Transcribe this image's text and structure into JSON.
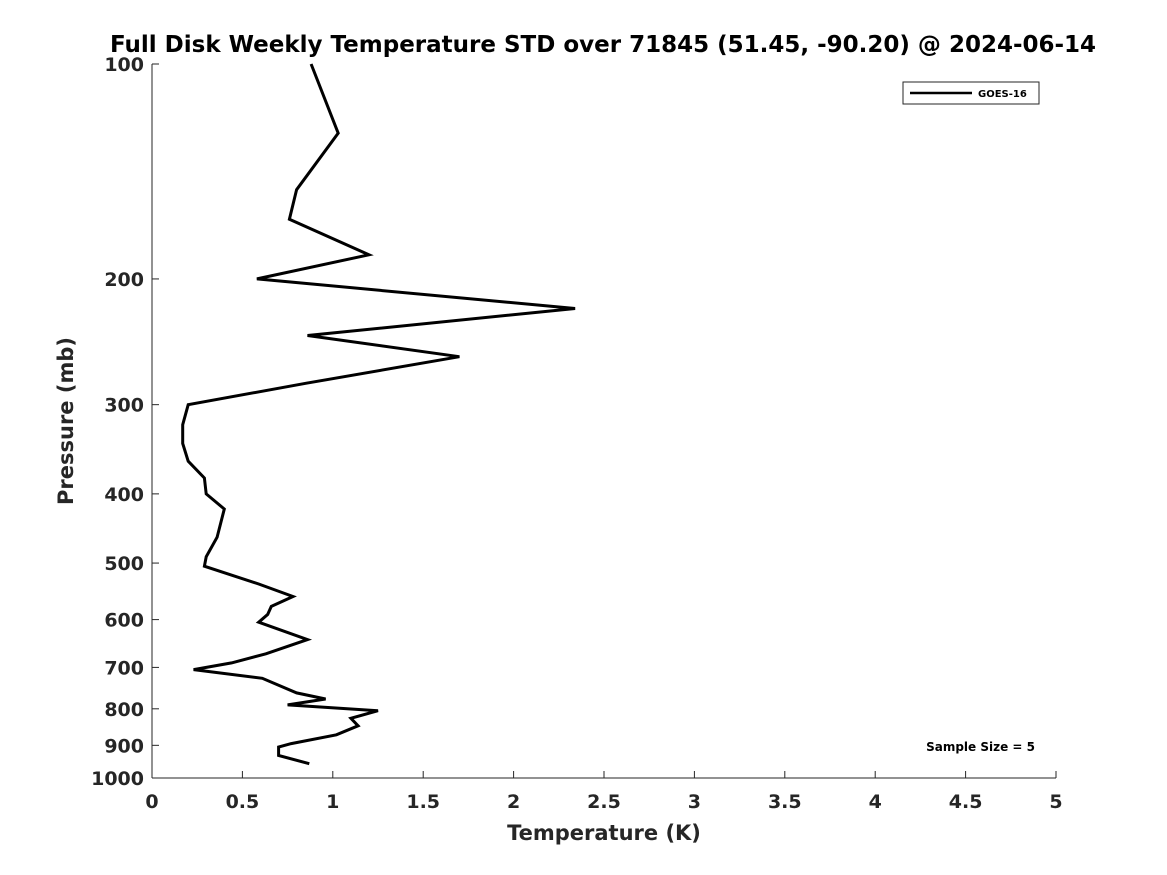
{
  "chart_data": {
    "type": "line",
    "title": "Full Disk Weekly Temperature STD over 71845 (51.45, -90.20) @ 2024-06-14",
    "xlabel": "Temperature (K)",
    "ylabel": "Pressure (mb)",
    "xlim": [
      0,
      5
    ],
    "ylim": [
      100,
      1000
    ],
    "y_scale": "log",
    "y_reversed": true,
    "x_ticks": [
      "0",
      "0.5",
      "1",
      "1.5",
      "2",
      "2.5",
      "3",
      "3.5",
      "4",
      "4.5",
      "5"
    ],
    "y_ticks": [
      "100",
      "200",
      "300",
      "400",
      "500",
      "600",
      "700",
      "800",
      "900",
      "1000"
    ],
    "grid": false,
    "legend": {
      "placement": "top-right",
      "entries": [
        "GOES-16"
      ]
    },
    "annotations": [
      {
        "text": "Sample Size = 5",
        "placement": "bottom-right"
      }
    ],
    "series": [
      {
        "name": "GOES-16",
        "color": "#000000",
        "points": [
          [
            0.88,
            100
          ],
          [
            1.03,
            125
          ],
          [
            0.8,
            150
          ],
          [
            0.76,
            165
          ],
          [
            1.2,
            185
          ],
          [
            0.58,
            200
          ],
          [
            2.34,
            220
          ],
          [
            0.86,
            240
          ],
          [
            1.7,
            257
          ],
          [
            0.85,
            280
          ],
          [
            0.2,
            300
          ],
          [
            0.17,
            320
          ],
          [
            0.17,
            340
          ],
          [
            0.2,
            360
          ],
          [
            0.29,
            380
          ],
          [
            0.3,
            400
          ],
          [
            0.4,
            420
          ],
          [
            0.36,
            460
          ],
          [
            0.3,
            490
          ],
          [
            0.29,
            505
          ],
          [
            0.59,
            535
          ],
          [
            0.78,
            557
          ],
          [
            0.66,
            575
          ],
          [
            0.64,
            590
          ],
          [
            0.59,
            605
          ],
          [
            0.86,
            640
          ],
          [
            0.63,
            670
          ],
          [
            0.44,
            690
          ],
          [
            0.23,
            705
          ],
          [
            0.61,
            725
          ],
          [
            0.8,
            760
          ],
          [
            0.96,
            775
          ],
          [
            0.75,
            790
          ],
          [
            1.25,
            805
          ],
          [
            1.1,
            825
          ],
          [
            1.14,
            845
          ],
          [
            1.02,
            870
          ],
          [
            0.77,
            895
          ],
          [
            0.7,
            905
          ],
          [
            0.7,
            930
          ],
          [
            0.87,
            955
          ]
        ]
      }
    ]
  }
}
